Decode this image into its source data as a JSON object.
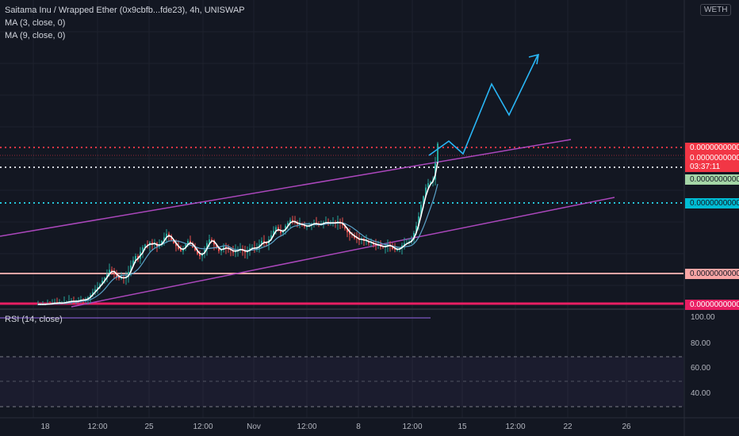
{
  "header": {
    "symbol_line": "Saitama Inu / Wrapped Ether (0x9cbfb...fde23), 4h, UNISWAP",
    "ma3_label": "MA (3, close, 0)",
    "ma9_label": "MA (9, close, 0)",
    "currency": "WETH"
  },
  "price_tags": [
    {
      "id": "red-top",
      "text": "0.0000000000",
      "bg": "#f23645",
      "color": "#ffffff"
    },
    {
      "id": "red-last",
      "text": "0.0000000000",
      "bg": "#f23645",
      "color": "#ffffff"
    },
    {
      "id": "countdown",
      "text": "03:37:11",
      "bg": "#f23645",
      "color": "#ffffff"
    },
    {
      "id": "green",
      "text": "0.0000000000",
      "bg": "#a5d6a7",
      "color": "#131722"
    },
    {
      "id": "blue",
      "text": "0.0000000000",
      "bg": "#00bcd4",
      "color": "#131722"
    },
    {
      "id": "pink",
      "text": "0.0000000000",
      "bg": "#f8a5a5",
      "color": "#131722"
    },
    {
      "id": "magenta",
      "text": "0.0000000000",
      "bg": "#e91e63",
      "color": "#ffffff"
    }
  ],
  "rsi": {
    "label": "RSI (14, close)",
    "axis": [
      "100.00",
      "80.00",
      "60.00",
      "40.00"
    ]
  },
  "colors": {
    "background": "#131722",
    "channel": "#ab47bc",
    "projection": "#29b6f6",
    "ma3": "#ffffff",
    "ma9": "#5aa3c9",
    "up": "#26a69a",
    "down": "#ef5350"
  },
  "chart_data": {
    "type": "candlestick",
    "timeframe": "4h",
    "x_ticks": [
      "18",
      "12:00",
      "25",
      "12:00",
      "Nov",
      "12:00",
      "8",
      "12:00",
      "15",
      "12:00",
      "22",
      "26"
    ],
    "close": [
      0.0,
      0.0,
      0.0,
      0.0,
      0.2,
      0.15,
      0.2,
      0.6,
      0.25,
      0.4,
      0.45,
      0.5,
      0.7,
      0.85,
      0.9,
      0.8,
      0.9,
      1.1,
      1.3,
      1.2,
      1.3,
      2.0,
      2.6,
      3.4,
      4.2,
      4.8,
      5.6,
      6.6,
      7.4,
      8.4,
      9.6,
      9.2,
      8.6,
      7.6,
      7.2,
      7.6,
      7.2,
      7.6,
      9.0,
      10.8,
      12.2,
      13.4,
      12.6,
      14.6,
      15.8,
      16.6,
      16.4,
      17.2,
      16.6,
      17.0,
      16.0,
      16.4,
      17.6,
      18.6,
      19.6,
      19.0,
      17.8,
      17.0,
      16.2,
      15.4,
      14.8,
      15.6,
      16.6,
      17.6,
      17.0,
      15.8,
      15.0,
      14.0,
      13.4,
      14.2,
      15.2,
      17.0,
      18.0,
      17.8,
      16.6,
      15.6,
      14.8,
      15.2,
      16.0,
      15.6,
      15.2,
      15.0,
      14.4,
      15.0,
      15.2,
      15.4,
      14.8,
      14.4,
      15.0,
      15.6,
      15.8,
      15.4,
      15.8,
      16.6,
      17.6,
      17.2,
      16.8,
      18.0,
      19.2,
      20.4,
      21.4,
      20.4,
      19.8,
      20.6,
      21.8,
      22.6,
      23.4,
      23.0,
      22.6,
      22.2,
      22.4,
      22.0,
      21.6,
      21.6,
      22.0,
      22.4,
      22.6,
      22.2,
      22.0,
      22.4,
      22.8,
      22.8,
      22.4,
      22.6,
      22.8,
      22.4,
      23.0,
      22.6,
      22.0,
      21.0,
      20.0,
      19.4,
      19.2,
      18.4,
      18.2,
      17.8,
      18.2,
      17.6,
      17.6,
      17.0,
      17.2,
      16.6,
      16.4,
      16.6,
      16.0,
      15.8,
      16.2,
      16.6,
      16.2,
      15.4,
      15.2,
      15.2,
      15.6,
      16.4,
      17.0,
      17.0,
      17.4,
      18.0,
      19.8,
      21.8,
      24.4,
      27.6,
      30.0,
      32.4,
      33.6,
      34.0,
      34.6,
      39.2,
      44.6
    ],
    "annotations": [
      "ascending channel upper trendline",
      "ascending channel lower trendline",
      "zigzag projection arrow",
      "horizontal price levels"
    ]
  }
}
